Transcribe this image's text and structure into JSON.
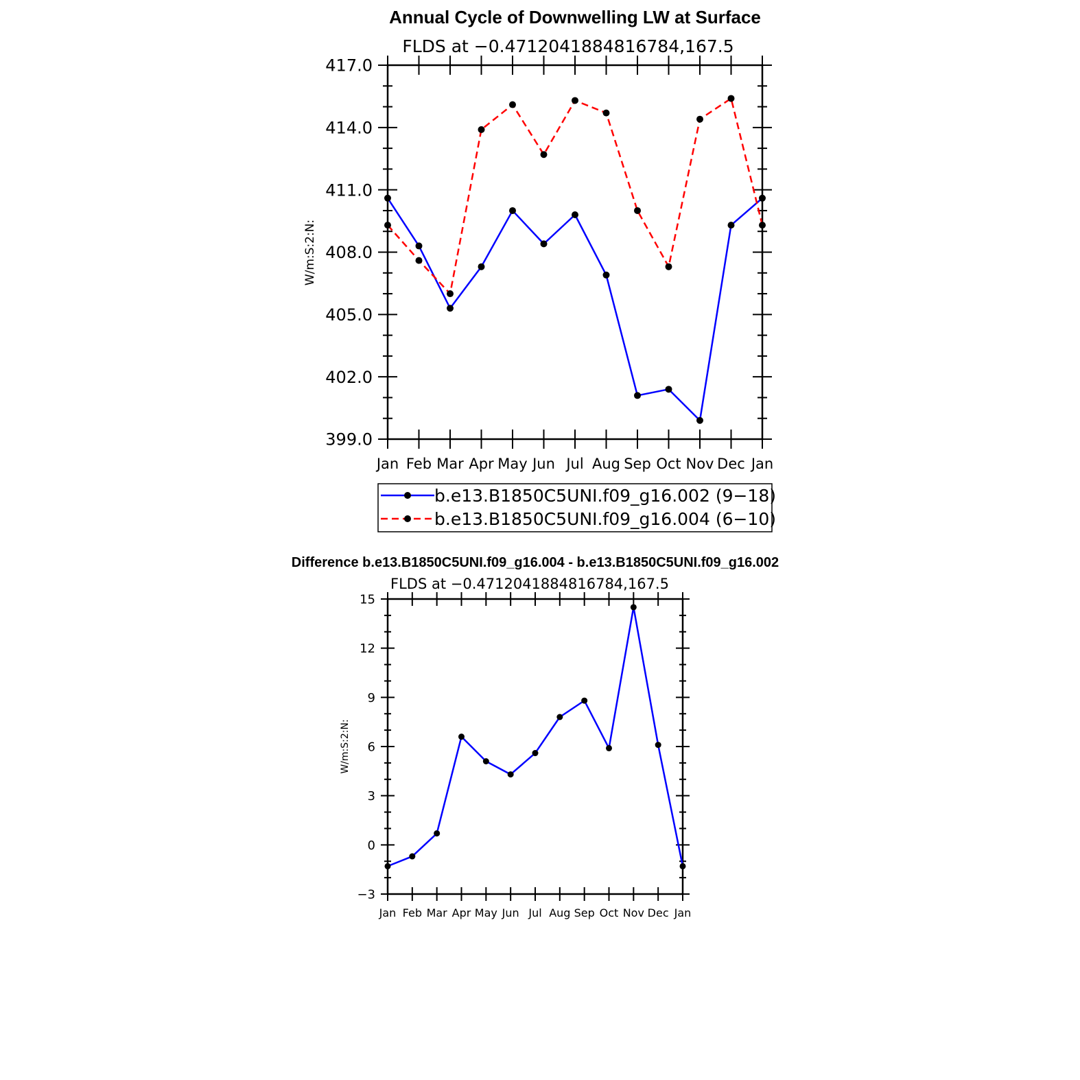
{
  "chart_data": [
    {
      "type": "line",
      "title": "Annual Cycle of Downwelling LW at Surface",
      "subtitle": "FLDS at −0.4712041884816784,167.5",
      "ylabel": "W/m:S:2:N:",
      "xlabel": "",
      "categories": [
        "Jan",
        "Feb",
        "Mar",
        "Apr",
        "May",
        "Jun",
        "Jul",
        "Aug",
        "Sep",
        "Oct",
        "Nov",
        "Dec",
        "Jan"
      ],
      "ylim": [
        399,
        417
      ],
      "yticks": [
        399,
        402,
        405,
        408,
        411,
        414,
        417
      ],
      "ytick_labels": [
        "399.0",
        "402.0",
        "405.0",
        "408.0",
        "411.0",
        "414.0",
        "417.0"
      ],
      "grid": false,
      "legend_position": "bottom",
      "series": [
        {
          "name": "b.e13.B1850C5UNI.f09_g16.002 (9−18)",
          "color": "#0000ff",
          "dash": "solid",
          "values": [
            410.6,
            408.3,
            405.3,
            407.3,
            410.0,
            408.4,
            409.8,
            406.9,
            401.1,
            401.4,
            399.9,
            409.3,
            410.6
          ]
        },
        {
          "name": "b.e13.B1850C5UNI.f09_g16.004 (6−10)",
          "color": "#ff0000",
          "dash": "dashed",
          "values": [
            409.3,
            407.6,
            406.0,
            413.9,
            415.1,
            412.7,
            415.3,
            414.7,
            410.0,
            407.3,
            414.4,
            415.4,
            409.3
          ]
        }
      ]
    },
    {
      "type": "line",
      "title": "Difference b.e13.B1850C5UNI.f09_g16.004 - b.e13.B1850C5UNI.f09_g16.002",
      "subtitle": "FLDS at −0.4712041884816784,167.5",
      "ylabel": "W/m:S:2:N:",
      "xlabel": "",
      "categories": [
        "Jan",
        "Feb",
        "Mar",
        "Apr",
        "May",
        "Jun",
        "Jul",
        "Aug",
        "Sep",
        "Oct",
        "Nov",
        "Dec",
        "Jan"
      ],
      "ylim": [
        -3,
        15
      ],
      "yticks": [
        -3,
        0,
        3,
        6,
        9,
        12,
        15
      ],
      "ytick_labels": [
        "−3",
        "0",
        "3",
        "6",
        "9",
        "12",
        "15"
      ],
      "grid": false,
      "series": [
        {
          "color": "#0000ff",
          "dash": "solid",
          "values": [
            -1.3,
            -0.7,
            0.7,
            6.6,
            5.1,
            4.3,
            5.6,
            7.8,
            8.8,
            5.9,
            14.5,
            6.1,
            -1.3
          ]
        }
      ]
    }
  ]
}
